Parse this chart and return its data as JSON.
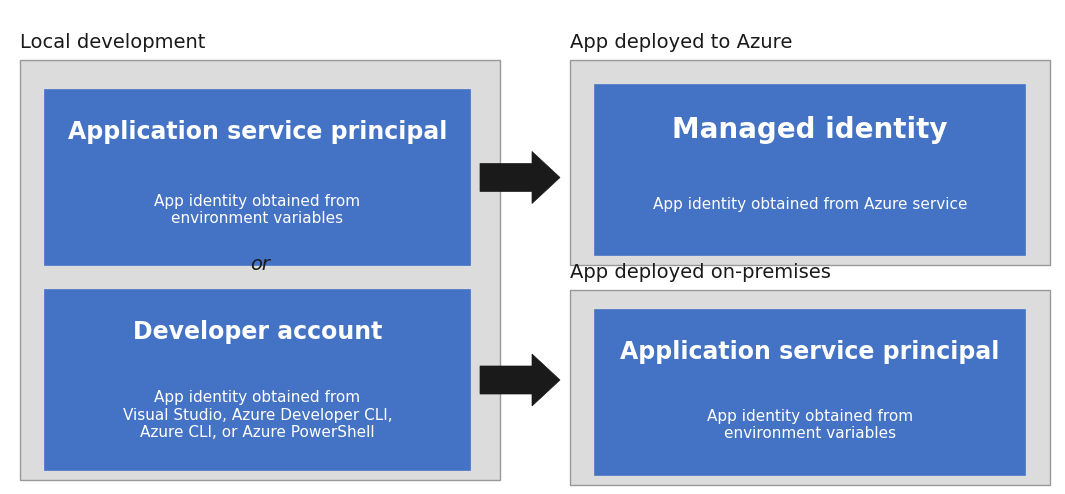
{
  "bg_color": "#ffffff",
  "outer_bg": "#dcdcdc",
  "inner_bg": "#4472c4",
  "text_white": "#ffffff",
  "text_dark": "#1a1a1a",
  "arrow_color": "#1a1a1a",
  "local_dev_label": "Local development",
  "azure_label": "App deployed to Azure",
  "onprem_label": "App deployed on-premises",
  "box1_title": "Application service principal",
  "box1_sub": "App identity obtained from\nenvironment variables",
  "or_text": "or",
  "box2_title": "Developer account",
  "box2_sub": "App identity obtained from\nVisual Studio, Azure Developer CLI,\nAzure CLI, or Azure PowerShell",
  "box3_title": "Managed identity",
  "box3_sub": "App identity obtained from Azure service",
  "box4_title": "Application service principal",
  "box4_sub": "App identity obtained from\nenvironment variables"
}
